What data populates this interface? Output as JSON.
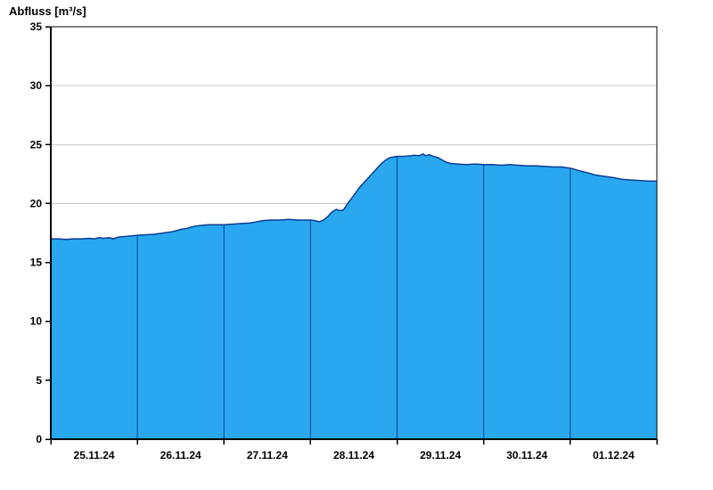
{
  "title": "Abfluss [m³/s]",
  "chart_data": {
    "type": "area",
    "title": "Abfluss [m³/s]",
    "ylabel": "Abfluss [m³/s]",
    "xlabel": "",
    "ylim": [
      0,
      35
    ],
    "y_ticks": [
      0,
      5,
      10,
      15,
      20,
      25,
      30,
      35
    ],
    "x_range_days": [
      0,
      7
    ],
    "x_tick_labels": [
      "25.11.24",
      "26.11.24",
      "27.11.24",
      "28.11.24",
      "29.11.24",
      "30.11.24",
      "01.12.24"
    ],
    "day_boundaries": [
      1,
      2,
      3,
      4,
      5,
      6
    ],
    "grid": "horizontal",
    "legend": "none",
    "colors": {
      "fill": "#29A8F0",
      "line": "#0B3D91",
      "grid": "#C8C8C8",
      "axis": "#000000",
      "background": "#FFFFFF"
    },
    "series": [
      {
        "name": "Abfluss",
        "unit": "m³/s",
        "points": [
          [
            0,
            17
          ],
          [
            0.1,
            17
          ],
          [
            0.18,
            16.95
          ],
          [
            0.25,
            17
          ],
          [
            0.35,
            17
          ],
          [
            0.45,
            17.05
          ],
          [
            0.5,
            17
          ],
          [
            0.55,
            17.1
          ],
          [
            0.6,
            17.05
          ],
          [
            0.68,
            17.1
          ],
          [
            0.72,
            17.0
          ],
          [
            0.78,
            17.15
          ],
          [
            0.85,
            17.2
          ],
          [
            0.92,
            17.25
          ],
          [
            1,
            17.3
          ],
          [
            1.1,
            17.35
          ],
          [
            1.2,
            17.4
          ],
          [
            1.3,
            17.5
          ],
          [
            1.4,
            17.6
          ],
          [
            1.5,
            17.8
          ],
          [
            1.58,
            17.9
          ],
          [
            1.62,
            18.0
          ],
          [
            1.68,
            18.1
          ],
          [
            1.75,
            18.15
          ],
          [
            1.82,
            18.2
          ],
          [
            1.9,
            18.2
          ],
          [
            2,
            18.2
          ],
          [
            2.1,
            18.25
          ],
          [
            2.2,
            18.3
          ],
          [
            2.3,
            18.35
          ],
          [
            2.38,
            18.45
          ],
          [
            2.45,
            18.55
          ],
          [
            2.55,
            18.6
          ],
          [
            2.65,
            18.6
          ],
          [
            2.75,
            18.65
          ],
          [
            2.85,
            18.6
          ],
          [
            2.95,
            18.6
          ],
          [
            3,
            18.6
          ],
          [
            3.05,
            18.55
          ],
          [
            3.1,
            18.45
          ],
          [
            3.15,
            18.6
          ],
          [
            3.2,
            18.9
          ],
          [
            3.25,
            19.3
          ],
          [
            3.3,
            19.5
          ],
          [
            3.33,
            19.4
          ],
          [
            3.38,
            19.45
          ],
          [
            3.42,
            19.9
          ],
          [
            3.47,
            20.4
          ],
          [
            3.52,
            20.9
          ],
          [
            3.57,
            21.4
          ],
          [
            3.62,
            21.8
          ],
          [
            3.67,
            22.2
          ],
          [
            3.72,
            22.6
          ],
          [
            3.77,
            23.0
          ],
          [
            3.82,
            23.4
          ],
          [
            3.87,
            23.7
          ],
          [
            3.92,
            23.9
          ],
          [
            4,
            24.0
          ],
          [
            4.08,
            24.0
          ],
          [
            4.15,
            24.05
          ],
          [
            4.2,
            24.1
          ],
          [
            4.25,
            24.05
          ],
          [
            4.3,
            24.2
          ],
          [
            4.33,
            24.05
          ],
          [
            4.37,
            24.15
          ],
          [
            4.42,
            24.0
          ],
          [
            4.47,
            23.9
          ],
          [
            4.52,
            23.7
          ],
          [
            4.57,
            23.5
          ],
          [
            4.62,
            23.4
          ],
          [
            4.7,
            23.35
          ],
          [
            4.8,
            23.3
          ],
          [
            4.9,
            23.35
          ],
          [
            5,
            23.3
          ],
          [
            5.1,
            23.3
          ],
          [
            5.2,
            23.25
          ],
          [
            5.3,
            23.3
          ],
          [
            5.4,
            23.25
          ],
          [
            5.5,
            23.2
          ],
          [
            5.6,
            23.2
          ],
          [
            5.7,
            23.15
          ],
          [
            5.8,
            23.1
          ],
          [
            5.9,
            23.1
          ],
          [
            6,
            23.0
          ],
          [
            6.05,
            22.9
          ],
          [
            6.12,
            22.75
          ],
          [
            6.2,
            22.6
          ],
          [
            6.3,
            22.4
          ],
          [
            6.4,
            22.3
          ],
          [
            6.5,
            22.2
          ],
          [
            6.6,
            22.05
          ],
          [
            6.7,
            22.0
          ],
          [
            6.8,
            21.95
          ],
          [
            6.9,
            21.9
          ],
          [
            7,
            21.9
          ]
        ]
      }
    ]
  }
}
